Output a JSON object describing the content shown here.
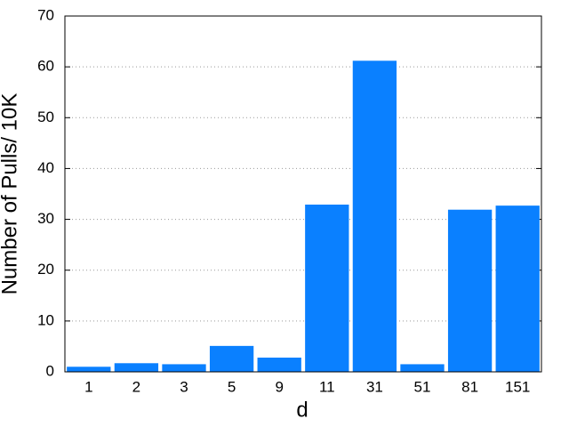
{
  "chart_data": {
    "type": "bar",
    "x_label": "d",
    "y_label": "Number of Pulls/ 10K",
    "categories": [
      "1",
      "2",
      "3",
      "5",
      "9",
      "11",
      "31",
      "51",
      "81",
      "151"
    ],
    "values": [
      1.0,
      1.7,
      1.5,
      5.1,
      2.8,
      32.9,
      61.2,
      1.5,
      31.9,
      32.7
    ],
    "color": "#0a80ff",
    "ylim": [
      0,
      70
    ],
    "yticks": [
      0,
      10,
      20,
      30,
      40,
      50,
      60,
      70
    ],
    "grid": true
  }
}
